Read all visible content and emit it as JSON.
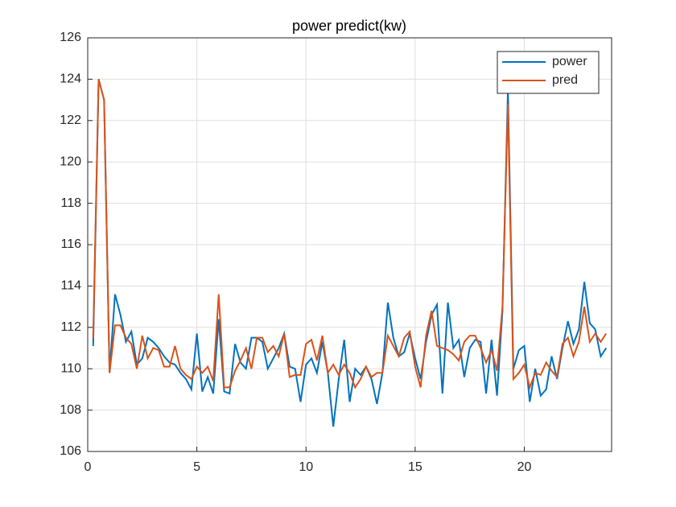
{
  "chart_data": {
    "type": "line",
    "title": "power predict(kw)",
    "x": [
      0.25,
      0.5,
      0.75,
      1,
      1.25,
      1.5,
      1.75,
      2,
      2.25,
      2.5,
      2.75,
      3,
      3.25,
      3.5,
      3.75,
      4,
      4.25,
      4.5,
      4.75,
      5,
      5.25,
      5.5,
      5.75,
      6,
      6.25,
      6.5,
      6.75,
      7,
      7.25,
      7.5,
      7.75,
      8,
      8.25,
      8.5,
      8.75,
      9,
      9.25,
      9.5,
      9.75,
      10,
      10.25,
      10.5,
      10.75,
      11,
      11.25,
      11.5,
      11.75,
      12,
      12.25,
      12.5,
      12.75,
      13,
      13.25,
      13.5,
      13.75,
      14,
      14.25,
      14.5,
      14.75,
      15,
      15.25,
      15.5,
      15.75,
      16,
      16.25,
      16.5,
      16.75,
      17,
      17.25,
      17.5,
      17.75,
      18,
      18.25,
      18.5,
      18.75,
      19,
      19.25,
      19.5,
      19.75,
      20,
      20.25,
      20.5,
      20.75,
      21,
      21.25,
      21.5,
      21.75,
      22,
      22.25,
      22.5,
      22.75,
      23,
      23.25,
      23.5,
      23.75
    ],
    "series": [
      {
        "name": "power",
        "color": "#0072bd",
        "values": [
          111.1,
          124,
          123,
          109.8,
          113.6,
          112.6,
          111.3,
          111.8,
          110.2,
          110.5,
          111.5,
          111.3,
          111,
          110.6,
          110.3,
          110.2,
          109.8,
          109.5,
          109,
          111.7,
          108.9,
          109.6,
          108.8,
          112.4,
          108.9,
          108.8,
          111.2,
          110.3,
          110,
          111.5,
          111.5,
          111.3,
          110,
          110.5,
          111,
          111.7,
          110.1,
          110,
          108.4,
          110.2,
          110.5,
          109.8,
          111.3,
          109.8,
          107.2,
          109.5,
          111.4,
          108.4,
          110,
          109.7,
          110.1,
          109.5,
          108.3,
          109.8,
          113.2,
          111.5,
          110.6,
          110.8,
          111.7,
          110.5,
          109.5,
          111.3,
          112.6,
          113.1,
          108.8,
          113.2,
          111,
          111.4,
          109.6,
          111,
          111.4,
          111.3,
          108.8,
          111.4,
          108.7,
          112.8,
          123.5,
          110,
          110.9,
          111.1,
          108.4,
          110,
          108.7,
          109,
          110.6,
          109.5,
          111,
          112.3,
          111.2,
          111.9,
          114.2,
          112.2,
          111.9,
          110.6,
          111
        ]
      },
      {
        "name": "pred",
        "color": "#d95319",
        "values": [
          111.5,
          124,
          123,
          109.8,
          112.1,
          112.1,
          111.5,
          111.2,
          110,
          111.6,
          110.5,
          111,
          110.9,
          110.1,
          110.1,
          111.1,
          110,
          109.7,
          109.5,
          110.1,
          109.8,
          110.1,
          109.4,
          113.6,
          109.1,
          109.1,
          109.9,
          110.4,
          111,
          110,
          111.5,
          111.5,
          110.8,
          111.1,
          110.6,
          111.7,
          109.6,
          109.7,
          109.7,
          111.2,
          111.4,
          110.4,
          111.6,
          109.8,
          110.2,
          109.7,
          110.2,
          109.8,
          109.1,
          109.5,
          110.1,
          109.6,
          109.8,
          109.8,
          111.6,
          111.1,
          110.6,
          111.5,
          111.8,
          110.1,
          109.1,
          111.6,
          112.8,
          111.1,
          111,
          110.9,
          110.7,
          110.4,
          111.3,
          111.6,
          111.6,
          111,
          110.3,
          110.9,
          109.9,
          113,
          122.8,
          109.5,
          109.8,
          110.2,
          109.1,
          109.8,
          109.7,
          110.3,
          109.9,
          109.6,
          111.2,
          111.5,
          110.6,
          111.3,
          113,
          111.3,
          111.7,
          111.3,
          111.7
        ]
      }
    ],
    "xlim": [
      0,
      24
    ],
    "xticks": [
      0,
      5,
      10,
      15,
      20
    ],
    "ylim": [
      106,
      126
    ],
    "yticks": [
      106,
      108,
      110,
      112,
      114,
      116,
      118,
      120,
      122,
      124,
      126
    ],
    "grid": true,
    "legend": "top-right"
  }
}
